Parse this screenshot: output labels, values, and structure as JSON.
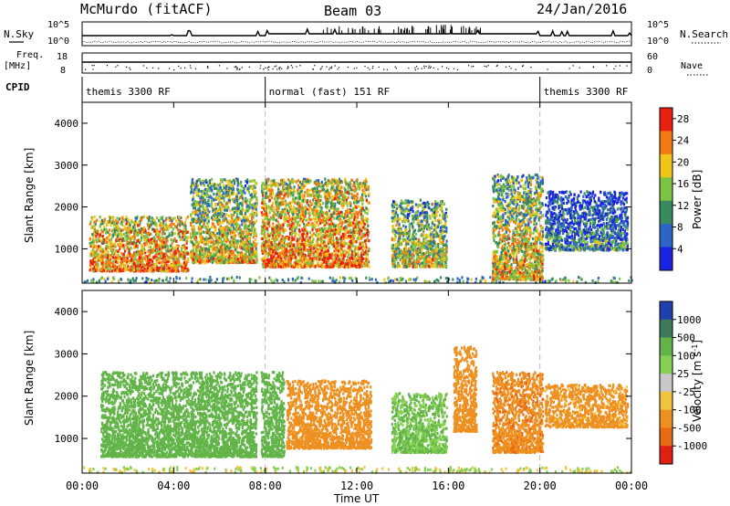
{
  "header": {
    "station": "McMurdo (fitACF)",
    "beam": "Beam 03",
    "date": "24/Jan/2016"
  },
  "panel_labels": {
    "n_sky": "N.Sky",
    "n_search": "N.Search",
    "freq": "Freq.",
    "freq_unit": "[MHz]",
    "nave": "Nave",
    "cpid": "CPID"
  },
  "noise_axis": {
    "left_top": "10^5",
    "left_bottom": "10^0",
    "right_top": "10^5",
    "right_bottom": "10^0"
  },
  "freq_axis": {
    "left_top": "18",
    "left_bottom": "8",
    "right_top": "60",
    "right_bottom": "0"
  },
  "cpid_segments": [
    {
      "label": "themis 3300 RF",
      "start_h": 0,
      "end_h": 8
    },
    {
      "label": "normal (fast) 151 RF",
      "start_h": 8,
      "end_h": 20
    },
    {
      "label": "themis 3300 RF",
      "start_h": 20,
      "end_h": 24
    }
  ],
  "x_axis": {
    "label": "Time UT",
    "ticks": [
      "00:00",
      "04:00",
      "08:00",
      "12:00",
      "16:00",
      "20:00",
      "00:00"
    ]
  },
  "chart_data": [
    {
      "type": "heatmap",
      "title": "",
      "xlabel": "Time UT",
      "ylabel": "Slant Range [km]",
      "xlim": [
        0,
        24
      ],
      "ylim": [
        180,
        4500
      ],
      "y_ticks": [
        "1000",
        "2000",
        "3000",
        "4000"
      ],
      "colorbar": {
        "label": "Power [dB]",
        "ticks": [
          "4",
          "8",
          "12",
          "16",
          "20",
          "24",
          "28"
        ],
        "range": [
          0,
          30
        ],
        "colors": [
          "#1a24e0",
          "#2c64c8",
          "#3a8a60",
          "#7cc444",
          "#f2c41a",
          "#f27a14",
          "#e82010"
        ]
      },
      "features": [
        {
          "t_start": 0.3,
          "t_end": 4.6,
          "range_low": 500,
          "range_high": 1800,
          "level": 24
        },
        {
          "t_start": 4.7,
          "t_end": 7.6,
          "range_low": 700,
          "range_high": 2700,
          "level": 20
        },
        {
          "t_start": 7.8,
          "t_end": 12.5,
          "range_low": 600,
          "range_high": 2700,
          "level": 24
        },
        {
          "t_start": 13.5,
          "t_end": 15.9,
          "range_low": 600,
          "range_high": 2200,
          "level": 18
        },
        {
          "t_start": 17.9,
          "t_end": 20.1,
          "range_low": 300,
          "range_high": 2800,
          "level": 20
        },
        {
          "t_start": 20.2,
          "t_end": 23.8,
          "range_low": 1000,
          "range_high": 2400,
          "level": 10
        }
      ]
    },
    {
      "type": "heatmap",
      "title": "",
      "xlabel": "Time UT",
      "ylabel": "Slant Range [km]",
      "xlim": [
        0,
        24
      ],
      "ylim": [
        180,
        4500
      ],
      "y_ticks": [
        "1000",
        "2000",
        "3000",
        "4000"
      ],
      "colorbar": {
        "label": "Velocity [m s^-1]",
        "ticks": [
          "1000",
          "500",
          "100",
          "25",
          "-25",
          "-100",
          "-500",
          "-1000"
        ],
        "colors": [
          "#2040b0",
          "#3e7a5a",
          "#62b448",
          "#84d050",
          "#c8c8c8",
          "#f2c43c",
          "#ee9020",
          "#e86a14",
          "#e02010"
        ]
      },
      "features": [
        {
          "t_start": 0.8,
          "t_end": 7.6,
          "range_low": 600,
          "range_high": 2600,
          "level": 300
        },
        {
          "t_start": 7.8,
          "t_end": 8.8,
          "range_low": 600,
          "range_high": 2600,
          "level": 200
        },
        {
          "t_start": 8.9,
          "t_end": 12.6,
          "range_low": 800,
          "range_high": 2400,
          "level": -300
        },
        {
          "t_start": 13.5,
          "t_end": 15.9,
          "range_low": 700,
          "range_high": 2100,
          "level": 100
        },
        {
          "t_start": 16.2,
          "t_end": 17.2,
          "range_low": 1200,
          "range_high": 3200,
          "level": -200
        },
        {
          "t_start": 17.9,
          "t_end": 20.1,
          "range_low": 700,
          "range_high": 2600,
          "level": -400
        },
        {
          "t_start": 20.2,
          "t_end": 23.8,
          "range_low": 1300,
          "range_high": 2300,
          "level": -150
        }
      ]
    }
  ]
}
